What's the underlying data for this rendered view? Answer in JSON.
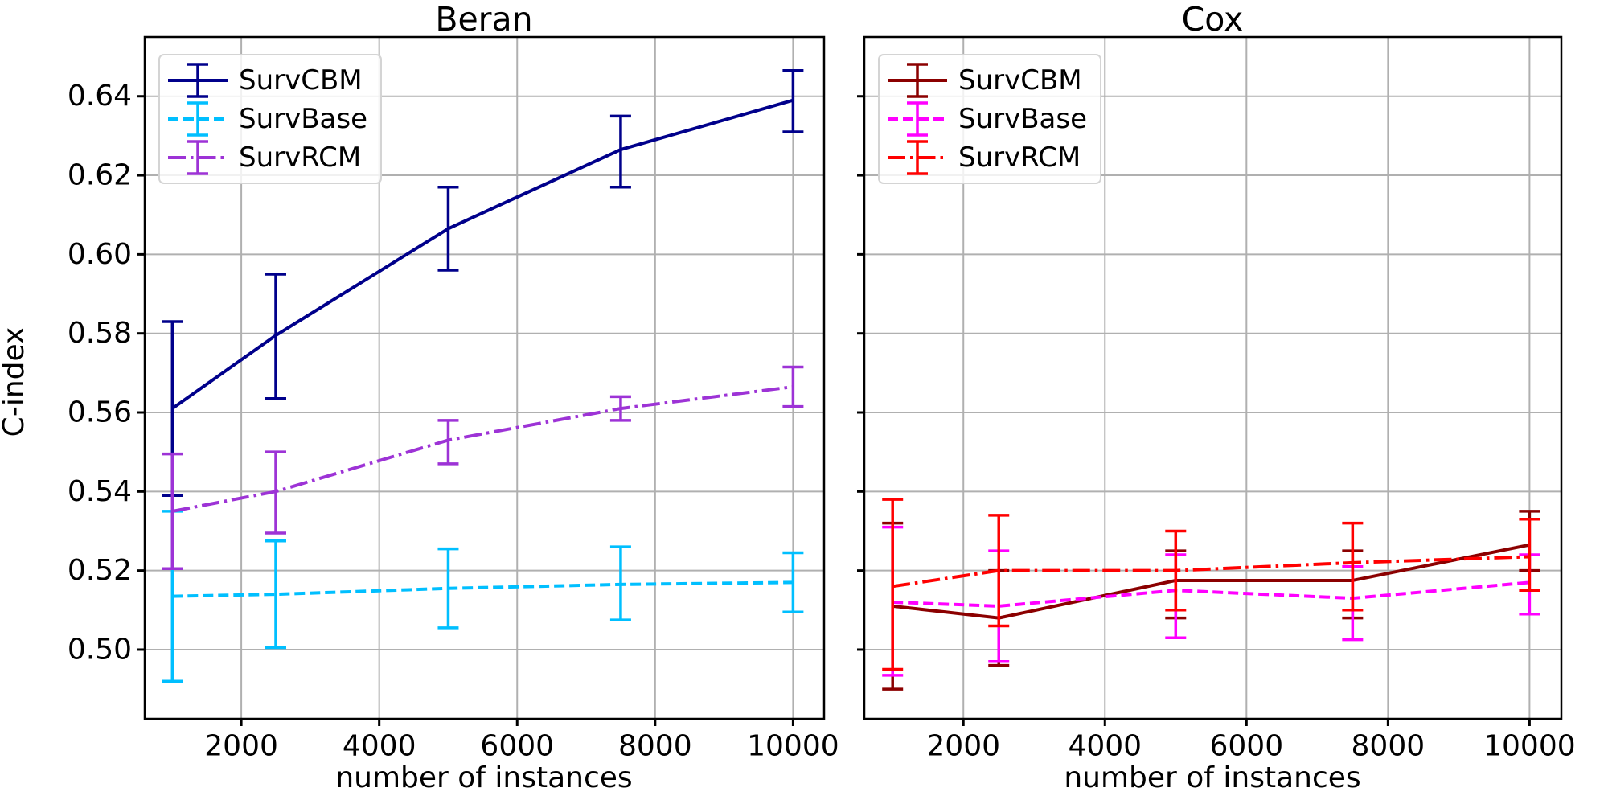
{
  "figure": {
    "background": "#ffffff",
    "grid_color": "#b0b0b0",
    "axis_color": "#000000",
    "text_color": "#000000"
  },
  "chart_data": [
    {
      "type": "line",
      "title": "Beran",
      "xlabel": "number of instances",
      "ylabel": "C-index",
      "x": [
        1000,
        2500,
        5000,
        7500,
        10000
      ],
      "xlim": [
        600,
        10450
      ],
      "ylim": [
        0.4825,
        0.655
      ],
      "xticks": [
        2000,
        4000,
        6000,
        8000,
        10000
      ],
      "xtick_labels": [
        "2000",
        "4000",
        "6000",
        "8000",
        "10000"
      ],
      "yticks": [
        0.5,
        0.52,
        0.54,
        0.56,
        0.58,
        0.6,
        0.62,
        0.64
      ],
      "ytick_labels": [
        "0.50",
        "0.52",
        "0.54",
        "0.56",
        "0.58",
        "0.60",
        "0.62",
        "0.64"
      ],
      "show_ytick_labels": true,
      "grid": true,
      "legend_position": "upper left",
      "series": [
        {
          "name": "SurvCBM",
          "color": "#00008b",
          "linestyle": "solid",
          "values": [
            0.561,
            0.5795,
            0.6065,
            0.6265,
            0.639
          ],
          "err_lo": [
            0.539,
            0.5635,
            0.596,
            0.617,
            0.631
          ],
          "err_hi": [
            0.583,
            0.595,
            0.617,
            0.635,
            0.6465
          ]
        },
        {
          "name": "SurvBase",
          "color": "#00bfff",
          "linestyle": "dashed",
          "values": [
            0.5135,
            0.514,
            0.5155,
            0.5165,
            0.517
          ],
          "err_lo": [
            0.492,
            0.5005,
            0.5055,
            0.5075,
            0.5095
          ],
          "err_hi": [
            0.535,
            0.5275,
            0.5255,
            0.526,
            0.5245
          ]
        },
        {
          "name": "SurvRCM",
          "color": "#9d33d6",
          "linestyle": "dashdot",
          "values": [
            0.535,
            0.54,
            0.553,
            0.561,
            0.5665
          ],
          "err_lo": [
            0.5205,
            0.5295,
            0.547,
            0.558,
            0.5615
          ],
          "err_hi": [
            0.5495,
            0.55,
            0.558,
            0.564,
            0.5715
          ]
        }
      ]
    },
    {
      "type": "line",
      "title": "Cox",
      "xlabel": "number of instances",
      "ylabel": "",
      "x": [
        1000,
        2500,
        5000,
        7500,
        10000
      ],
      "xlim": [
        600,
        10450
      ],
      "ylim": [
        0.4825,
        0.655
      ],
      "xticks": [
        2000,
        4000,
        6000,
        8000,
        10000
      ],
      "xtick_labels": [
        "2000",
        "4000",
        "6000",
        "8000",
        "10000"
      ],
      "yticks": [
        0.5,
        0.52,
        0.54,
        0.56,
        0.58,
        0.6,
        0.62,
        0.64
      ],
      "ytick_labels": [
        "0.50",
        "0.52",
        "0.54",
        "0.56",
        "0.58",
        "0.60",
        "0.62",
        "0.64"
      ],
      "show_ytick_labels": false,
      "grid": true,
      "legend_position": "upper left",
      "series": [
        {
          "name": "SurvCBM",
          "color": "#8b0000",
          "linestyle": "solid",
          "values": [
            0.511,
            0.508,
            0.5175,
            0.5175,
            0.5265
          ],
          "err_lo": [
            0.49,
            0.496,
            0.508,
            0.508,
            0.52
          ],
          "err_hi": [
            0.532,
            0.52,
            0.525,
            0.525,
            0.535
          ]
        },
        {
          "name": "SurvBase",
          "color": "#ff00ff",
          "linestyle": "dashed",
          "values": [
            0.512,
            0.511,
            0.515,
            0.513,
            0.517
          ],
          "err_lo": [
            0.4935,
            0.497,
            0.503,
            0.5025,
            0.509
          ],
          "err_hi": [
            0.531,
            0.525,
            0.524,
            0.521,
            0.524
          ]
        },
        {
          "name": "SurvRCM",
          "color": "#ff0000",
          "linestyle": "dashdot",
          "values": [
            0.516,
            0.52,
            0.52,
            0.522,
            0.5235
          ],
          "err_lo": [
            0.495,
            0.506,
            0.51,
            0.51,
            0.515
          ],
          "err_hi": [
            0.538,
            0.534,
            0.53,
            0.532,
            0.533
          ]
        }
      ]
    }
  ]
}
